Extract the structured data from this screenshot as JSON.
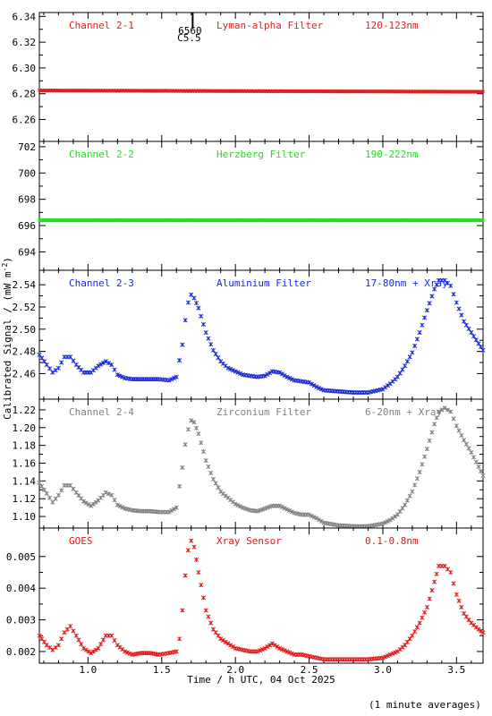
{
  "figure": {
    "xlabel": "Time / h UTC, 04 Oct 2025",
    "ylabel": "Calibrated Signal / (mW m",
    "ylabel_sup": "-2",
    "ylabel_close": ")",
    "footnote": "(1 minute averages)",
    "marker": {
      "x": 1.71,
      "label_top": "6560",
      "label_bottom": "C5.5"
    }
  },
  "chart_data": [
    {
      "type": "scatter",
      "title": "Channel 2-1",
      "filter": "Lyman-alpha Filter",
      "band": "120-123nm",
      "color": "#dd2222",
      "xlim": [
        0.67,
        3.68
      ],
      "ylim": [
        6.243,
        6.343
      ],
      "yticks": [
        6.26,
        6.28,
        6.3,
        6.32,
        6.34
      ],
      "ytick_labels": [
        "6.26",
        "6.28",
        "6.30",
        "6.32",
        "6.34"
      ],
      "x": [
        0.67,
        3.68
      ],
      "y": [
        6.2825,
        6.2815
      ]
    },
    {
      "type": "scatter",
      "title": "Channel 2-2",
      "filter": "Herzberg Filter",
      "band": "190-222nm",
      "color": "#22dd22",
      "xlim": [
        0.67,
        3.68
      ],
      "ylim": [
        692.6,
        702.4
      ],
      "yticks": [
        694,
        696,
        698,
        700,
        702
      ],
      "ytick_labels": [
        "694",
        "696",
        "698",
        "700",
        "702"
      ],
      "x": [
        0.67,
        3.68
      ],
      "y": [
        696.4,
        696.4
      ]
    },
    {
      "type": "scatter",
      "title": "Channel 2-3",
      "filter": "Aluminium Filter",
      "band": "17-80nm + Xray",
      "color": "#1a2ad6",
      "xlim": [
        0.67,
        3.68
      ],
      "ylim": [
        2.437,
        2.553
      ],
      "yticks": [
        2.46,
        2.48,
        2.5,
        2.52,
        2.54
      ],
      "ytick_labels": [
        "2.46",
        "2.48",
        "2.50",
        "2.52",
        "2.54"
      ],
      "x": [
        0.67,
        0.72,
        0.76,
        0.8,
        0.84,
        0.88,
        0.92,
        0.97,
        1.02,
        1.07,
        1.12,
        1.16,
        1.2,
        1.25,
        1.3,
        1.36,
        1.42,
        1.48,
        1.55,
        1.6,
        1.62,
        1.64,
        1.66,
        1.68,
        1.7,
        1.72,
        1.75,
        1.8,
        1.85,
        1.9,
        1.95,
        2.0,
        2.05,
        2.1,
        2.15,
        2.2,
        2.25,
        2.3,
        2.35,
        2.4,
        2.45,
        2.5,
        2.55,
        2.6,
        2.7,
        2.8,
        2.9,
        3.0,
        3.05,
        3.1,
        3.15,
        3.2,
        3.25,
        3.3,
        3.35,
        3.38,
        3.42,
        3.46,
        3.5,
        3.55,
        3.6,
        3.65,
        3.68
      ],
      "y": [
        2.477,
        2.468,
        2.461,
        2.465,
        2.475,
        2.475,
        2.468,
        2.461,
        2.461,
        2.467,
        2.471,
        2.468,
        2.459,
        2.456,
        2.455,
        2.455,
        2.455,
        2.455,
        2.454,
        2.457,
        2.472,
        2.486,
        2.508,
        2.524,
        2.531,
        2.528,
        2.519,
        2.497,
        2.481,
        2.471,
        2.465,
        2.462,
        2.459,
        2.458,
        2.457,
        2.458,
        2.462,
        2.461,
        2.457,
        2.454,
        2.453,
        2.452,
        2.448,
        2.445,
        2.444,
        2.443,
        2.443,
        2.446,
        2.451,
        2.457,
        2.467,
        2.479,
        2.497,
        2.517,
        2.536,
        2.544,
        2.544,
        2.539,
        2.524,
        2.507,
        2.497,
        2.487,
        2.481
      ]
    },
    {
      "type": "scatter",
      "title": "Channel 2-4",
      "filter": "Zirconium Filter",
      "band": "6-20nm + Xray",
      "color": "#808080",
      "xlim": [
        0.67,
        3.68
      ],
      "ylim": [
        1.087,
        1.232
      ],
      "yticks": [
        1.1,
        1.12,
        1.14,
        1.16,
        1.18,
        1.2,
        1.22
      ],
      "ytick_labels": [
        "1.10",
        "1.12",
        "1.14",
        "1.16",
        "1.18",
        "1.20",
        "1.22"
      ],
      "x": [
        0.67,
        0.72,
        0.76,
        0.8,
        0.84,
        0.88,
        0.92,
        0.97,
        1.02,
        1.07,
        1.12,
        1.16,
        1.2,
        1.25,
        1.3,
        1.36,
        1.42,
        1.48,
        1.55,
        1.6,
        1.62,
        1.64,
        1.66,
        1.68,
        1.7,
        1.72,
        1.75,
        1.8,
        1.85,
        1.9,
        1.95,
        2.0,
        2.05,
        2.1,
        2.15,
        2.2,
        2.25,
        2.3,
        2.35,
        2.4,
        2.45,
        2.5,
        2.55,
        2.6,
        2.7,
        2.8,
        2.9,
        3.0,
        3.05,
        3.1,
        3.15,
        3.2,
        3.25,
        3.3,
        3.35,
        3.38,
        3.42,
        3.46,
        3.5,
        3.55,
        3.6,
        3.65,
        3.68
      ],
      "y": [
        1.138,
        1.126,
        1.116,
        1.124,
        1.135,
        1.135,
        1.127,
        1.117,
        1.112,
        1.118,
        1.127,
        1.124,
        1.113,
        1.109,
        1.107,
        1.106,
        1.106,
        1.105,
        1.105,
        1.11,
        1.134,
        1.155,
        1.181,
        1.198,
        1.208,
        1.206,
        1.193,
        1.163,
        1.142,
        1.128,
        1.121,
        1.114,
        1.11,
        1.107,
        1.106,
        1.109,
        1.112,
        1.112,
        1.108,
        1.104,
        1.102,
        1.102,
        1.098,
        1.093,
        1.09,
        1.089,
        1.089,
        1.092,
        1.096,
        1.102,
        1.113,
        1.128,
        1.15,
        1.176,
        1.204,
        1.218,
        1.222,
        1.218,
        1.202,
        1.186,
        1.172,
        1.156,
        1.146
      ]
    },
    {
      "type": "scatter",
      "title": "GOES",
      "filter": "Xray Sensor",
      "band": "0.1-0.8nm",
      "color": "#e01a1a",
      "xlim": [
        0.67,
        3.68
      ],
      "ylim": [
        0.00163,
        0.0059
      ],
      "yticks": [
        0.002,
        0.003,
        0.004,
        0.005
      ],
      "ytick_labels": [
        "0.002",
        "0.003",
        "0.004",
        "0.005"
      ],
      "x": [
        0.67,
        0.72,
        0.76,
        0.8,
        0.84,
        0.88,
        0.92,
        0.97,
        1.02,
        1.07,
        1.12,
        1.16,
        1.2,
        1.25,
        1.3,
        1.36,
        1.42,
        1.48,
        1.55,
        1.6,
        1.62,
        1.64,
        1.66,
        1.68,
        1.7,
        1.72,
        1.75,
        1.8,
        1.85,
        1.9,
        1.95,
        2.0,
        2.05,
        2.1,
        2.15,
        2.2,
        2.25,
        2.3,
        2.35,
        2.4,
        2.45,
        2.5,
        2.55,
        2.6,
        2.7,
        2.8,
        2.9,
        3.0,
        3.05,
        3.1,
        3.15,
        3.2,
        3.25,
        3.3,
        3.35,
        3.38,
        3.42,
        3.46,
        3.5,
        3.55,
        3.6,
        3.65,
        3.68
      ],
      "y": [
        0.0025,
        0.0022,
        0.00205,
        0.0022,
        0.0026,
        0.0028,
        0.0025,
        0.0021,
        0.00195,
        0.0021,
        0.0025,
        0.0025,
        0.0022,
        0.002,
        0.0019,
        0.00195,
        0.00195,
        0.0019,
        0.00195,
        0.002,
        0.0024,
        0.0033,
        0.0044,
        0.0052,
        0.0055,
        0.0053,
        0.0045,
        0.0033,
        0.0027,
        0.0024,
        0.00225,
        0.0021,
        0.00205,
        0.002,
        0.002,
        0.0021,
        0.00225,
        0.0021,
        0.002,
        0.0019,
        0.0019,
        0.00185,
        0.0018,
        0.00175,
        0.00175,
        0.00175,
        0.00175,
        0.0018,
        0.0019,
        0.002,
        0.0022,
        0.0025,
        0.0029,
        0.0034,
        0.0042,
        0.0047,
        0.0047,
        0.0045,
        0.0038,
        0.0032,
        0.0029,
        0.0027,
        0.0026
      ]
    }
  ],
  "xaxis": {
    "xlim": [
      0.67,
      3.68
    ],
    "ticks": [
      1.0,
      1.5,
      2.0,
      2.5,
      3.0,
      3.5
    ],
    "tick_labels": [
      "1.0",
      "1.5",
      "2.0",
      "2.5",
      "3.0",
      "3.5"
    ]
  }
}
